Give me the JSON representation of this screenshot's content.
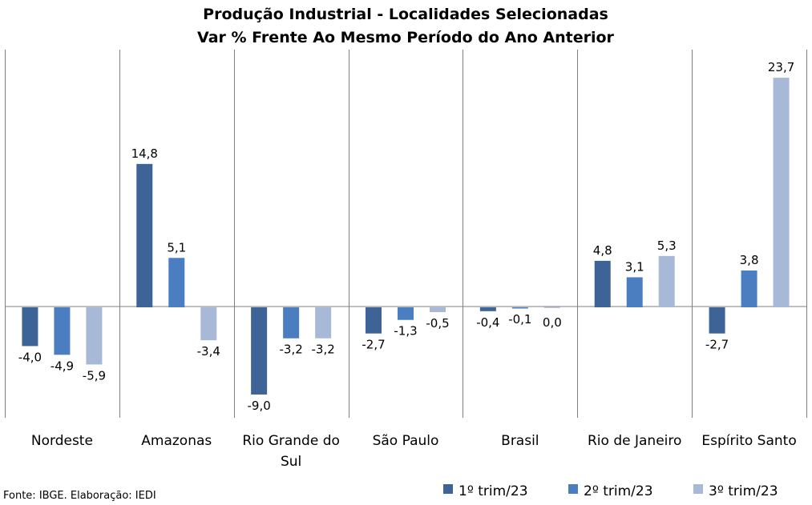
{
  "chart_data": {
    "type": "bar",
    "title": "Produção Industrial - Localidades Selecionadas",
    "subtitle": "Var % Frente Ao Mesmo Período do Ano Anterior",
    "categories": [
      "Nordeste",
      "Amazonas",
      "Rio Grande do Sul",
      "São Paulo",
      "Brasil",
      "Rio de Janeiro",
      "Espírito Santo"
    ],
    "category_lines": [
      [
        "Nordeste"
      ],
      [
        "Amazonas"
      ],
      [
        "Rio Grande do",
        "Sul"
      ],
      [
        "São Paulo"
      ],
      [
        "Brasil"
      ],
      [
        "Rio de Janeiro"
      ],
      [
        "Espírito Santo"
      ]
    ],
    "series": [
      {
        "name": "1º trim/23",
        "color": "#3d6397",
        "values": [
          -4.0,
          14.8,
          -9.0,
          -2.7,
          -0.4,
          4.8,
          -2.7
        ],
        "labels": [
          "-4,0",
          "14,8",
          "-9,0",
          "-2,7",
          "-0,4",
          "4,8",
          "-2,7"
        ]
      },
      {
        "name": "2º trim/23",
        "color": "#4a7ec0",
        "values": [
          -4.9,
          5.1,
          -3.2,
          -1.3,
          -0.1,
          3.1,
          3.8
        ],
        "labels": [
          "-4,9",
          "5,1",
          "-3,2",
          "-1,3",
          "-0,1",
          "3,1",
          "3,8"
        ]
      },
      {
        "name": "3º trim/23",
        "color": "#a8b9d8",
        "values": [
          -5.9,
          -3.4,
          -3.2,
          -0.5,
          0.0,
          5.3,
          23.7
        ],
        "labels": [
          "-5,9",
          "-3,4",
          "-3,2",
          "-0,5",
          "0,0",
          "5,3",
          "23,7"
        ]
      }
    ],
    "ylim": [
      -11.4,
      26.6
    ],
    "legend_position": "bottom-right",
    "source": "Fonte: IBGE. Elaboração: IEDI"
  }
}
